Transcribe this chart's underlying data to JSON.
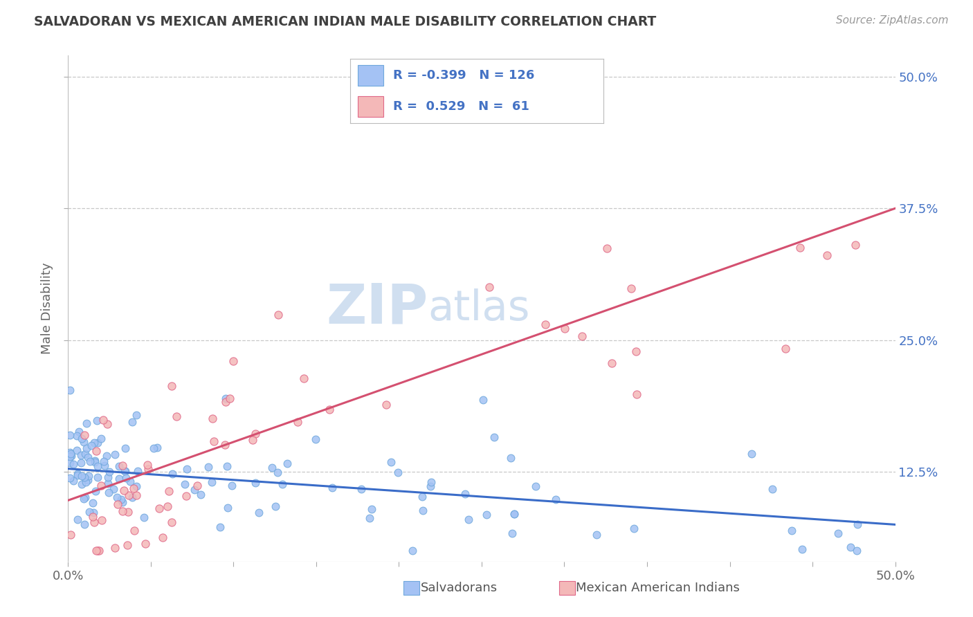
{
  "title": "SALVADORAN VS MEXICAN AMERICAN INDIAN MALE DISABILITY CORRELATION CHART",
  "source": "Source: ZipAtlas.com",
  "ylabel": "Male Disability",
  "xlim": [
    0.0,
    0.5
  ],
  "ylim": [
    0.04,
    0.52
  ],
  "ytick_labels": [
    "12.5%",
    "25.0%",
    "37.5%",
    "50.0%"
  ],
  "ytick_values": [
    0.125,
    0.25,
    0.375,
    0.5
  ],
  "salvadoran_color": "#a4c2f4",
  "salvadoran_edge": "#6fa8dc",
  "mexican_color": "#f4b8b8",
  "mexican_edge": "#e06888",
  "trend_blue": "#3a6cc8",
  "trend_pink": "#d45070",
  "background_color": "#ffffff",
  "grid_color": "#c8c8c8",
  "watermark_color": "#d0dff0",
  "title_color": "#404040",
  "label_color": "#4472c4",
  "legend_color": "#4472c4",
  "salvadoran_R": -0.399,
  "salvadoran_N": 126,
  "mexican_R": 0.529,
  "mexican_N": 61,
  "blue_trend_y0": 0.128,
  "blue_trend_y1": 0.075,
  "pink_trend_y0": 0.098,
  "pink_trend_y1": 0.375
}
